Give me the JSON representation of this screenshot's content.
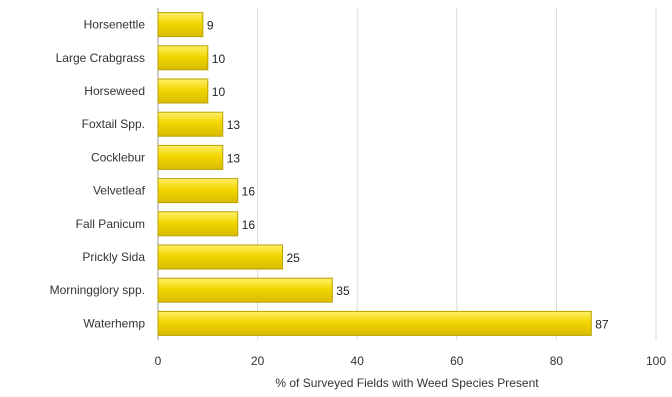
{
  "chart_data": {
    "type": "bar",
    "orientation": "horizontal",
    "categories": [
      "Horsenettle",
      "Large Crabgrass",
      "Horseweed",
      "Foxtail Spp.",
      "Cocklebur",
      "Velvetleaf",
      "Fall Panicum",
      "Prickly Sida",
      "Morningglory spp.",
      "Waterhemp"
    ],
    "values": [
      9,
      10,
      10,
      13,
      13,
      16,
      16,
      25,
      35,
      87
    ],
    "xlabel": "% of Surveyed Fields with Weed Species Present",
    "ylabel": "",
    "xlim": [
      0,
      100
    ],
    "xticks": [
      "0",
      "20",
      "40",
      "60",
      "80",
      "100"
    ],
    "grid": true,
    "legend": "none",
    "colors": {
      "bar": "#f2d600",
      "bar_edge": "#b9a100",
      "grid": "#d9d9d9",
      "axis": "#999999"
    }
  }
}
